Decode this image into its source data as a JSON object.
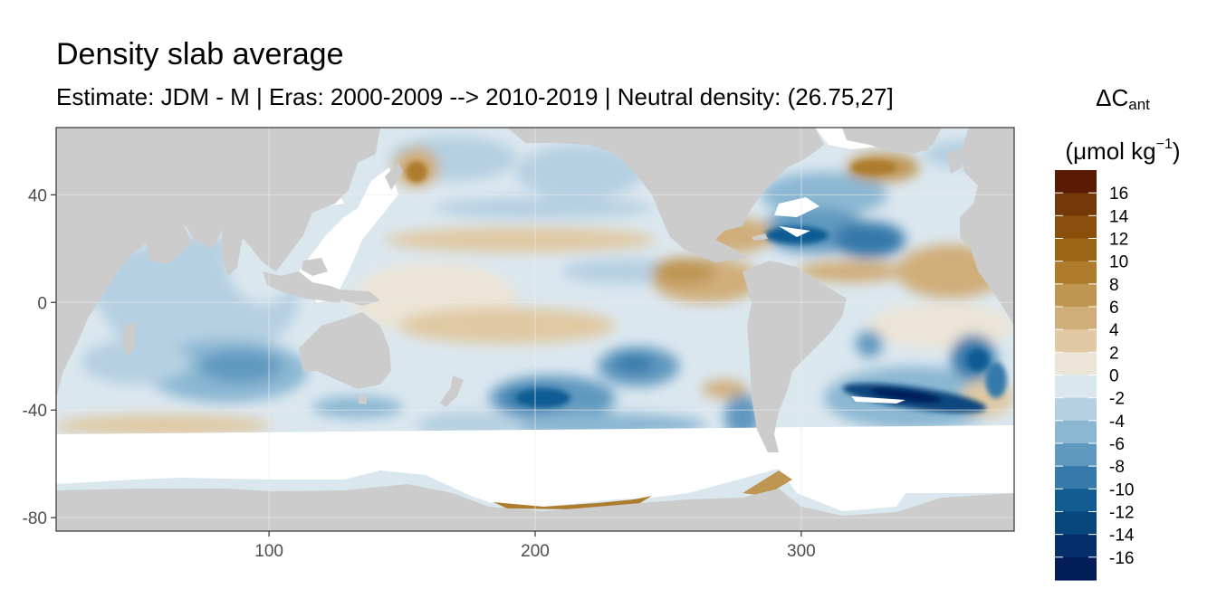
{
  "chart_data": {
    "type": "heatmap",
    "title": "Density slab average",
    "subtitle": "Estimate: JDM - M | Eras: 2000-2009 --> 2010-2019 | Neutral density: (26.75,27]",
    "xlabel": "",
    "ylabel": "",
    "x_ticks": [
      "100",
      "200",
      "300"
    ],
    "y_ticks": [
      "40",
      "0",
      "-40",
      "-80"
    ],
    "xlim": [
      20,
      380
    ],
    "ylim": [
      -85,
      65
    ],
    "grid": true,
    "legend": {
      "position": "right",
      "title_symbol": "ΔC",
      "title_subscript": "ant",
      "unit_prefix": "(μmol kg",
      "unit_superscript": "−1",
      "unit_suffix": ")",
      "labels": [
        "16",
        "14",
        "12",
        "10",
        "8",
        "6",
        "4",
        "2",
        "0",
        "-2",
        "-4",
        "-6",
        "-8",
        "-10",
        "-12",
        "-14",
        "-16"
      ],
      "colors": [
        "#5a1a04",
        "#733708",
        "#8b4f0c",
        "#9a6516",
        "#ad7c2d",
        "#bf9552",
        "#d0ae7a",
        "#e0c9a3",
        "#ece4d6",
        "#dbe7ef",
        "#b5d0e2",
        "#8bb7d3",
        "#6099c0",
        "#3679aa",
        "#115c93",
        "#08467e",
        "#052f6a",
        "#031d58"
      ]
    },
    "features": {
      "land_color": "#cccccc",
      "missing_color": "#ffffff",
      "strong_negative_anomalies": [
        {
          "lon": 330,
          "lat": -35,
          "value": -16
        },
        {
          "lon": 205,
          "lat": -40,
          "value": -12
        },
        {
          "lon": 310,
          "lat": 27,
          "value": -12
        },
        {
          "lon": 80,
          "lat": -28,
          "value": -8
        },
        {
          "lon": 238,
          "lat": -27,
          "value": -8
        }
      ],
      "positive_anomalies": [
        {
          "lon": 260,
          "lat": 8,
          "value": 8
        },
        {
          "lon": 345,
          "lat": 52,
          "value": 8
        },
        {
          "lon": 152,
          "lat": 52,
          "value": 8
        },
        {
          "lon": 205,
          "lat": -73,
          "value": 10
        }
      ]
    }
  }
}
